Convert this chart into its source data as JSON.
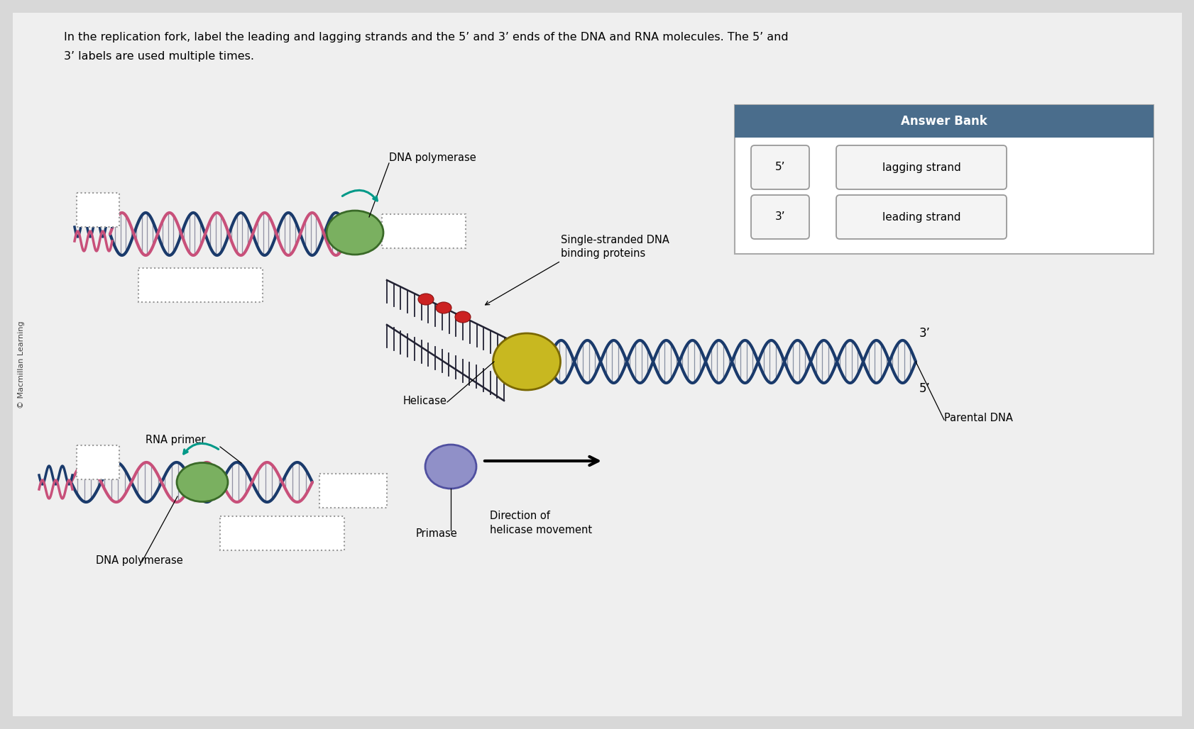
{
  "bg_color": "#d8d8d8",
  "panel_color": "#e8e8e8",
  "title_text_line1": "In the replication fork, label the leading and lagging strands and the 5’ and 3’ ends of the DNA and RNA molecules. The 5’ and",
  "title_text_line2": "3’ labels are used multiple times.",
  "copyright_text": "© Macmillan Learning",
  "answer_bank_header": "Answer Bank",
  "answer_bank_color": "#4a6d8c",
  "dna_color_1": "#1a3a6b",
  "dna_pink": "#c8507a",
  "dna_teal": "#1a8a7a",
  "helicase_color": "#c8b820",
  "dna_pol_color": "#7ab060",
  "primase_color": "#9090c8",
  "labels": {
    "dna_polymerase_top": "DNA polymerase",
    "single_stranded": "Single-stranded DNA\nbinding proteins",
    "helicase": "Helicase",
    "rna_primer": "RNA primer",
    "dna_polymerase_bot": "DNA polymerase",
    "primase": "Primase",
    "parental_dna": "Parental DNA",
    "direction": "Direction of\nhelicase movement",
    "three_prime": "3’",
    "five_prime": "5’"
  }
}
